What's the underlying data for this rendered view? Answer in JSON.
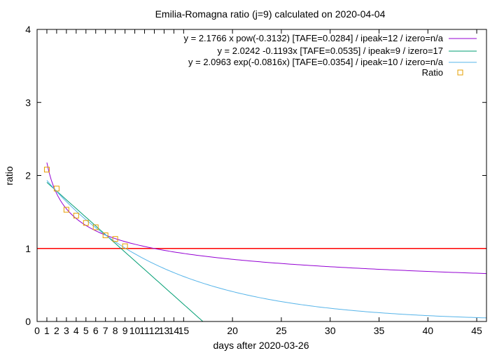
{
  "chart_data": {
    "type": "line",
    "title": "Emilia-Romagna ratio (j=9) calculated on 2020-04-04",
    "xlabel": "days after 2020-03-26",
    "ylabel": "ratio",
    "xlim": [
      0,
      46
    ],
    "ylim": [
      0,
      4
    ],
    "xticks": [
      "0",
      "1",
      "2",
      "3",
      "4",
      "5",
      "6",
      "7",
      "8",
      "9",
      "10",
      "11",
      "12",
      "13",
      "14",
      "15",
      "20",
      "25",
      "30",
      "35",
      "40",
      "45"
    ],
    "xtick_values": [
      0,
      1,
      2,
      3,
      4,
      5,
      6,
      7,
      8,
      9,
      10,
      11,
      12,
      13,
      14,
      15,
      20,
      25,
      30,
      35,
      40,
      45
    ],
    "yticks": [
      "0",
      "1",
      "2",
      "3",
      "4"
    ],
    "ytick_values": [
      0,
      1,
      2,
      3,
      4
    ],
    "legend_position": "top-right",
    "series": [
      {
        "name": "y = 2.1766 x pow(-0.3132)  [TAFE=0.0284] / ipeak=12 / izero=n/a",
        "kind": "power",
        "a": 2.1766,
        "b": -0.3132,
        "x_range": [
          1,
          46
        ],
        "color": "#9400d3"
      },
      {
        "name": "y = 2.0242 -0.1193x  [TAFE=0.0535] / ipeak=9 / izero=17",
        "kind": "linear",
        "a": 2.0242,
        "b": -0.1193,
        "x_range": [
          1,
          16.97
        ],
        "color": "#009e73"
      },
      {
        "name": "y = 2.0963 exp(-0.0816x)  [TAFE=0.0354] / ipeak=10 / izero=n/a",
        "kind": "exp",
        "a": 2.0963,
        "b": -0.0816,
        "x_range": [
          1,
          46
        ],
        "color": "#56b4e9"
      },
      {
        "name": "Ratio",
        "kind": "points",
        "color": "#e69f00",
        "x": [
          1,
          2,
          3,
          4,
          5,
          6,
          7,
          8,
          9
        ],
        "y": [
          2.08,
          1.82,
          1.53,
          1.45,
          1.35,
          1.29,
          1.18,
          1.13,
          1.03
        ]
      }
    ],
    "reference_line": {
      "y": 1,
      "color": "#ff0000"
    }
  }
}
